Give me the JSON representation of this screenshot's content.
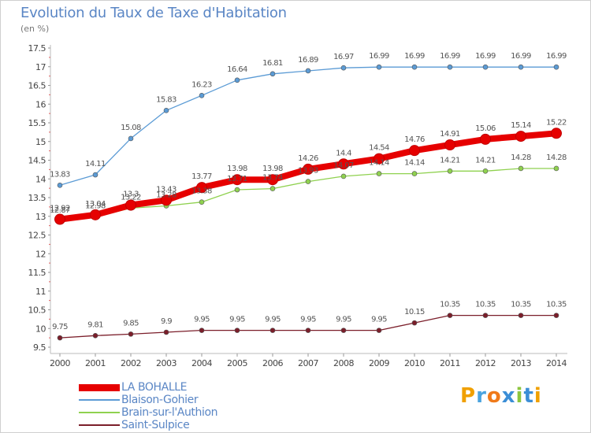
{
  "header": {
    "title": "Evolution du Taux de Taxe d'Habitation",
    "subtitle": "(en %)"
  },
  "chart_data": {
    "type": "line",
    "title": "Evolution du Taux de Taxe d'Habitation",
    "subtitle": "(en %)",
    "xlabel": "",
    "ylabel": "",
    "x": [
      2000,
      2001,
      2002,
      2003,
      2004,
      2005,
      2006,
      2007,
      2008,
      2009,
      2010,
      2011,
      2012,
      2013,
      2014
    ],
    "ylim": [
      9.5,
      17.5
    ],
    "yticks": [
      9.5,
      10,
      10.5,
      11,
      11.5,
      12,
      12.5,
      13,
      13.5,
      14,
      14.5,
      15,
      15.5,
      16,
      16.5,
      17,
      17.5
    ],
    "grid": false,
    "legend": "bottom-left",
    "series": [
      {
        "name": "LA BOHALLE",
        "color": "#e60000",
        "values": [
          12.92,
          13.04,
          13.3,
          13.43,
          13.77,
          13.98,
          13.98,
          14.26,
          14.4,
          14.54,
          14.76,
          14.91,
          15.06,
          15.14,
          15.22
        ],
        "labels": [
          "12.92",
          "13.04",
          "13.3",
          "13.43",
          "13.77",
          "13.98",
          "13.98",
          "14.26",
          "14.4",
          "14.54",
          "14.76",
          "14.91",
          "15.06",
          "15.14",
          "15.22"
        ]
      },
      {
        "name": "Blaison-Gohier",
        "color": "#5b9bd5",
        "values": [
          13.83,
          14.11,
          15.08,
          15.83,
          16.23,
          16.64,
          16.81,
          16.89,
          16.97,
          16.99,
          16.99,
          16.99,
          16.99,
          16.99,
          16.99
        ],
        "labels": [
          "13.83",
          "14.11",
          "15.08",
          "15.83",
          "16.23",
          "16.64",
          "16.81",
          "16.89",
          "16.97",
          "16.99",
          "16.99",
          "16.99",
          "16.99",
          "16.99",
          "16.99"
        ]
      },
      {
        "name": "Brain-sur-l'Authion",
        "color": "#8fd14f",
        "values": [
          12.87,
          12.98,
          13.22,
          13.28,
          13.38,
          13.71,
          13.74,
          13.93,
          14.07,
          14.14,
          14.14,
          14.21,
          14.21,
          14.28,
          14.28
        ],
        "labels": [
          "12.87",
          "12.98",
          "13.22",
          "13.28",
          "13.38",
          "13.71",
          "13.74",
          "13.93",
          "14.07",
          "14.14",
          "14.14",
          "14.21",
          "14.21",
          "14.28",
          "14.28"
        ]
      },
      {
        "name": "Saint-Sulpice",
        "color": "#7b1e2a",
        "values": [
          9.75,
          9.81,
          9.85,
          9.9,
          9.95,
          9.95,
          9.95,
          9.95,
          9.95,
          9.95,
          10.15,
          10.35,
          10.35,
          10.35,
          10.35
        ],
        "labels": [
          "9.75",
          "9.81",
          "9.85",
          "9.9",
          "9.95",
          "9.95",
          "9.95",
          "9.95",
          "9.95",
          "9.95",
          "10.15",
          "10.35",
          "10.35",
          "10.35",
          "10.35"
        ]
      }
    ]
  },
  "legend": {
    "items": [
      {
        "name": "LA BOHALLE",
        "color": "#e60000"
      },
      {
        "name": "Blaison-Gohier",
        "color": "#5b9bd5"
      },
      {
        "name": "Brain-sur-l'Authion",
        "color": "#8fd14f"
      },
      {
        "name": "Saint-Sulpice",
        "color": "#7b1e2a"
      }
    ]
  },
  "logo": {
    "text": "Proxiti"
  }
}
